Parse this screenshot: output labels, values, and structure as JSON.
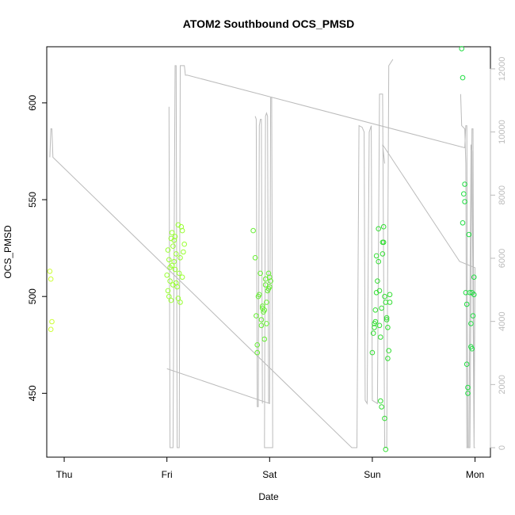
{
  "chart_data": {
    "type": "scatter",
    "title": "ATOM2 Southbound OCS_PMSD",
    "xlabel": "Date",
    "ylabel": "OCS_PMSD",
    "x_ticks": [
      "Thu",
      "Fri",
      "Sat",
      "Sun",
      "Mon"
    ],
    "x_tick_values": [
      0,
      1,
      2,
      3,
      4
    ],
    "xlim": [
      -0.17,
      4.15
    ],
    "ylim": [
      417,
      629
    ],
    "y_ticks": [
      450,
      500,
      550,
      600
    ],
    "y2lim": [
      -300,
      12700
    ],
    "y2_ticks": [
      0,
      2000,
      4000,
      6000,
      8000,
      10000,
      12000
    ],
    "grid": false,
    "colors": {
      "thu": "#ccff33",
      "fri": "#99ff33",
      "sat": "#66ee33",
      "sun": "#33dd33",
      "mon": "#22dd44",
      "line": "#bbbbbb",
      "axis": "#000000",
      "axis2": "#bbbbbb"
    },
    "series": [
      {
        "key": "thu",
        "points": [
          [
            -0.14,
            513
          ],
          [
            -0.13,
            509
          ],
          [
            -0.12,
            487
          ],
          [
            -0.13,
            483
          ]
        ]
      },
      {
        "key": "fri",
        "points": [
          [
            1.01,
            503
          ],
          [
            1.02,
            500
          ],
          [
            1.03,
            508
          ],
          [
            1.04,
            498
          ],
          [
            1.0,
            511
          ],
          [
            1.01,
            524
          ],
          [
            1.02,
            519
          ],
          [
            1.03,
            515
          ],
          [
            1.04,
            530
          ],
          [
            1.05,
            533
          ],
          [
            1.06,
            526
          ],
          [
            1.07,
            518
          ],
          [
            1.08,
            514
          ],
          [
            1.09,
            507
          ],
          [
            1.1,
            505
          ],
          [
            1.11,
            537
          ],
          [
            1.12,
            512
          ],
          [
            1.13,
            520
          ],
          [
            1.14,
            536
          ],
          [
            1.15,
            534
          ],
          [
            1.16,
            523
          ],
          [
            1.17,
            527
          ],
          [
            1.05,
            516
          ],
          [
            1.07,
            529
          ],
          [
            1.09,
            522
          ],
          [
            1.11,
            499
          ],
          [
            1.13,
            497
          ],
          [
            1.15,
            510
          ],
          [
            1.06,
            506
          ],
          [
            1.08,
            531
          ]
        ]
      },
      {
        "key": "sat",
        "points": [
          [
            1.84,
            534
          ],
          [
            1.86,
            520
          ],
          [
            1.87,
            490
          ],
          [
            1.88,
            475
          ],
          [
            1.88,
            471
          ],
          [
            1.9,
            501
          ],
          [
            1.91,
            512
          ],
          [
            1.92,
            488
          ],
          [
            1.92,
            485
          ],
          [
            1.93,
            495
          ],
          [
            1.94,
            492
          ],
          [
            1.95,
            478
          ],
          [
            1.96,
            506
          ],
          [
            1.96,
            509
          ],
          [
            1.97,
            497
          ],
          [
            1.98,
            503
          ],
          [
            1.99,
            512
          ],
          [
            2.0,
            510
          ],
          [
            2.0,
            505
          ],
          [
            2.01,
            508
          ],
          [
            1.89,
            500
          ],
          [
            1.93,
            494
          ],
          [
            1.95,
            493
          ],
          [
            1.97,
            486
          ],
          [
            1.99,
            504
          ]
        ]
      },
      {
        "key": "sun",
        "points": [
          [
            3.0,
            471
          ],
          [
            3.01,
            481
          ],
          [
            3.02,
            486
          ],
          [
            3.03,
            487
          ],
          [
            3.03,
            493
          ],
          [
            3.04,
            502
          ],
          [
            3.05,
            508
          ],
          [
            3.06,
            535
          ],
          [
            3.07,
            485
          ],
          [
            3.08,
            479
          ],
          [
            3.08,
            446
          ],
          [
            3.09,
            443
          ],
          [
            3.1,
            522
          ],
          [
            3.11,
            528
          ],
          [
            3.11,
            536
          ],
          [
            3.12,
            500
          ],
          [
            3.13,
            497
          ],
          [
            3.14,
            488
          ],
          [
            3.15,
            484
          ],
          [
            3.15,
            468
          ],
          [
            3.16,
            472
          ],
          [
            3.17,
            497
          ],
          [
            3.17,
            501
          ],
          [
            3.04,
            521
          ],
          [
            3.06,
            518
          ],
          [
            3.09,
            494
          ],
          [
            3.12,
            437
          ],
          [
            3.13,
            421
          ],
          [
            3.1,
            528
          ],
          [
            3.14,
            489
          ],
          [
            3.02,
            484
          ],
          [
            3.07,
            503
          ]
        ]
      },
      {
        "key": "mon",
        "points": [
          [
            3.87,
            628
          ],
          [
            3.88,
            613
          ],
          [
            3.89,
            553
          ],
          [
            3.9,
            549
          ],
          [
            3.9,
            558
          ],
          [
            3.91,
            502
          ],
          [
            3.92,
            496
          ],
          [
            3.92,
            465
          ],
          [
            3.93,
            450
          ],
          [
            3.94,
            532
          ],
          [
            3.95,
            502
          ],
          [
            3.96,
            474
          ],
          [
            3.96,
            486
          ],
          [
            3.97,
            473
          ],
          [
            3.98,
            490
          ],
          [
            3.99,
            501
          ],
          [
            3.99,
            510
          ],
          [
            3.88,
            538
          ],
          [
            3.93,
            453
          ],
          [
            3.97,
            502
          ]
        ]
      }
    ],
    "line_series": {
      "axis": "secondary",
      "points": [
        [
          -0.14,
          9200
        ],
        [
          -0.13,
          10100
        ],
        [
          -0.12,
          10100
        ],
        [
          -0.11,
          9200
        ],
        [
          2.8,
          0
        ],
        [
          2.85,
          0
        ],
        [
          2.87,
          10200
        ],
        [
          2.9,
          10150
        ],
        [
          2.92,
          10000
        ],
        [
          2.93,
          1500
        ],
        [
          2.95,
          1400
        ],
        [
          2.97,
          10000
        ],
        [
          2.99,
          10200
        ],
        [
          3.0,
          1500
        ],
        [
          3.05,
          1400
        ],
        [
          3.07,
          11200
        ],
        [
          3.1,
          11200
        ],
        [
          3.12,
          0
        ],
        [
          3.14,
          0
        ],
        [
          3.16,
          12100
        ],
        [
          3.2,
          12300
        ],
        null,
        [
          1.02,
          10800
        ],
        [
          1.03,
          0
        ],
        [
          1.06,
          0
        ],
        [
          1.08,
          12100
        ],
        [
          1.09,
          12100
        ],
        [
          1.1,
          0
        ],
        [
          1.12,
          0
        ],
        [
          1.13,
          12100
        ],
        [
          1.17,
          12100
        ],
        [
          1.18,
          11800
        ],
        [
          1.2,
          11800
        ],
        [
          3.9,
          9500
        ],
        [
          3.91,
          10200
        ],
        [
          3.92,
          10200
        ],
        [
          3.93,
          0
        ],
        [
          3.95,
          0
        ],
        [
          3.97,
          10100
        ],
        [
          3.98,
          10100
        ],
        [
          3.99,
          0
        ],
        [
          4.0,
          0
        ],
        null,
        [
          1.0,
          2500
        ],
        [
          1.0,
          2500
        ],
        [
          2.0,
          1400
        ],
        [
          2.0,
          1400
        ],
        [
          2.01,
          11100
        ],
        [
          2.02,
          11100
        ],
        [
          2.03,
          0
        ],
        [
          1.95,
          0
        ],
        [
          1.96,
          10500
        ],
        [
          1.97,
          10600
        ],
        [
          1.98,
          10500
        ],
        [
          1.99,
          1400
        ],
        null,
        [
          1.86,
          10500
        ],
        [
          1.87,
          10400
        ],
        [
          1.88,
          1300
        ],
        [
          1.89,
          1300
        ],
        [
          1.9,
          10200
        ],
        [
          1.91,
          10400
        ],
        [
          1.92,
          10400
        ],
        [
          1.93,
          1400
        ],
        null,
        [
          3.86,
          11200
        ],
        [
          3.87,
          10200
        ],
        [
          3.9,
          10100
        ],
        [
          3.91,
          9000
        ],
        [
          3.92,
          0
        ],
        [
          3.94,
          0
        ],
        [
          3.96,
          9600
        ],
        [
          3.97,
          9400
        ],
        [
          3.99,
          0
        ],
        [
          4.0,
          5700
        ],
        [
          3.85,
          5900
        ],
        [
          3.1,
          9600
        ],
        [
          3.12,
          9000
        ]
      ]
    }
  }
}
